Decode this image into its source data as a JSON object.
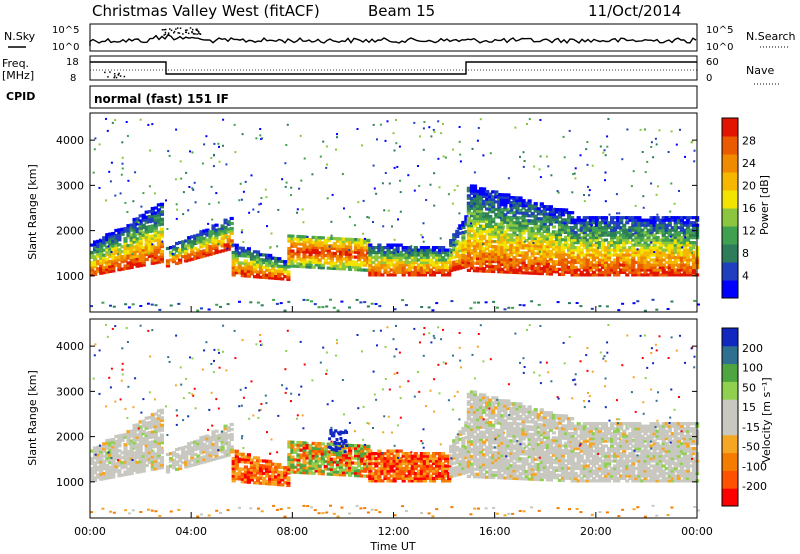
{
  "header": {
    "station": "Christmas Valley West (fitACF)",
    "beam": "Beam 15",
    "date": "11/Oct/2014"
  },
  "top_panel": {
    "nsky_label": "N.Sky",
    "nsearch_label": "N.Search",
    "left_ticks": [
      "10^5",
      "10^0"
    ],
    "right_ticks": [
      "10^5",
      "10^0"
    ]
  },
  "freq_panel": {
    "freq_label_1": "Freq.",
    "freq_label_2": "[MHz]",
    "nave_label": "Nave",
    "left_ticks": [
      "18",
      "8"
    ],
    "right_ticks": [
      "60",
      "0"
    ]
  },
  "cpid": {
    "label": "CPID",
    "value": "normal (fast) 151 IF"
  },
  "colors": {
    "power_scale": [
      "#0000ff",
      "#1f3fbf",
      "#2e7d5a",
      "#3fa04f",
      "#8cc63f",
      "#f2e400",
      "#f5b700",
      "#f08a00",
      "#ea5a00",
      "#e21500"
    ],
    "velocity_scale": [
      "#ff0000",
      "#ff5200",
      "#f47c00",
      "#f5a623",
      "#c8c8c0",
      "#c8c8c0",
      "#8fd14f",
      "#4fa53f",
      "#2f6f8f",
      "#1028c0"
    ]
  },
  "chart_data": [
    {
      "type": "heatmap",
      "title": "Power",
      "ylabel": "Slant Range [km]",
      "yticks": [
        "1000",
        "2000",
        "3000",
        "4000"
      ],
      "ylim": [
        200,
        4600
      ],
      "xlim": [
        0,
        24
      ],
      "colorbar_label": "Power [dB]",
      "colorbar_ticks": [
        "4",
        "8",
        "12",
        "16",
        "20",
        "24",
        "28"
      ],
      "colorbar_range": [
        0,
        30
      ]
    },
    {
      "type": "heatmap",
      "title": "Velocity",
      "ylabel": "Slant Range [km]",
      "yticks": [
        "1000",
        "2000",
        "3000",
        "4000"
      ],
      "ylim": [
        200,
        4600
      ],
      "xlim": [
        0,
        24
      ],
      "colorbar_label": "Velocity [m s⁻¹]",
      "colorbar_ticks": [
        "200",
        "100",
        "50",
        "15",
        "-15",
        "-50",
        "-100",
        "-200"
      ],
      "colorbar_range": [
        -250,
        250
      ]
    }
  ],
  "x_axis": {
    "ticks": [
      "00:00",
      "04:00",
      "08:00",
      "12:00",
      "16:00",
      "20:00",
      "00:00"
    ],
    "label": "Time UT"
  }
}
